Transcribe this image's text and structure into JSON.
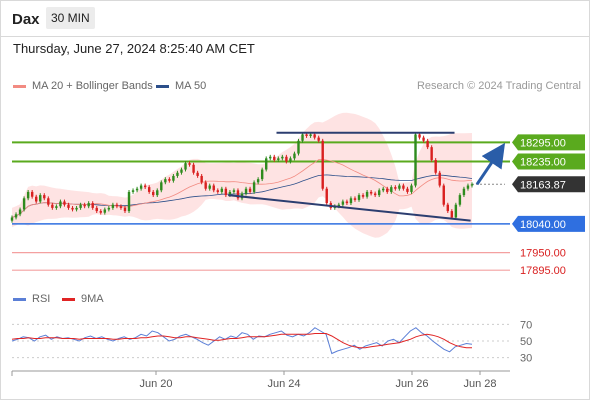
{
  "header": {
    "symbol": "Dax",
    "timeframe": "30 MIN"
  },
  "datetime": "Thursday, June 27, 2024 8:25:40 AM CET",
  "legend": {
    "ma20": {
      "label": "MA 20 + Bollinger Bands",
      "color": "#f28b82"
    },
    "ma50": {
      "label": "MA 50",
      "color": "#2c4f8a"
    }
  },
  "research": "Research © 2024 Trading Central",
  "rsi_legend": {
    "rsi": {
      "label": "RSI",
      "color": "#5b7fd6"
    },
    "ma9": {
      "label": "9MA",
      "color": "#e02424"
    }
  },
  "colors": {
    "up": "#2e8b1e",
    "down": "#d92020",
    "green_level": "#5aaa1e",
    "blue_level": "#2f6fe0",
    "red_level": "#f4a0a0",
    "current": "#333333",
    "band": "#fdd9d9",
    "arrow": "#2a5da8"
  },
  "chart_data": {
    "type": "candlestick",
    "ylim": [
      17880,
      18340
    ],
    "x_ticks": [
      "Jun 20",
      "Jun 24",
      "Jun 26",
      "Jun 28"
    ],
    "levels": [
      {
        "value": 18295.0,
        "label": "18295.00",
        "kind": "resistance",
        "color": "#5aaa1e"
      },
      {
        "value": 18235.0,
        "label": "18235.00",
        "kind": "resistance",
        "color": "#5aaa1e"
      },
      {
        "value": 18163.87,
        "label": "18163.87",
        "kind": "current",
        "color": "#333333"
      },
      {
        "value": 18040.0,
        "label": "18040.00",
        "kind": "pivot",
        "color": "#2f6fe0"
      },
      {
        "value": 17950.0,
        "label": "17950.00",
        "kind": "support",
        "color": "#f4a0a0"
      },
      {
        "value": 17895.0,
        "label": "17895.00",
        "kind": "support",
        "color": "#f4a0a0"
      }
    ],
    "close_path": [
      18060,
      18070,
      18085,
      18120,
      18140,
      18125,
      18110,
      18130,
      18120,
      18100,
      18090,
      18095,
      18110,
      18100,
      18090,
      18085,
      18090,
      18100,
      18095,
      18105,
      18090,
      18080,
      18075,
      18085,
      18090,
      18100,
      18095,
      18090,
      18080,
      18140,
      18145,
      18150,
      18160,
      18155,
      18140,
      18130,
      18145,
      18170,
      18180,
      18175,
      18190,
      18200,
      18210,
      18230,
      18225,
      18200,
      18190,
      18170,
      18150,
      18160,
      18145,
      18140,
      18150,
      18130,
      18140,
      18145,
      18120,
      18135,
      18150,
      18140,
      18170,
      18180,
      18210,
      18245,
      18250,
      18240,
      18245,
      18250,
      18235,
      18245,
      18260,
      18300,
      18320,
      18315,
      18320,
      18310,
      18300,
      18150,
      18105,
      18090,
      18095,
      18100,
      18110,
      18105,
      18120,
      18115,
      18130,
      18125,
      18140,
      18135,
      18130,
      18145,
      18150,
      18140,
      18155,
      18150,
      18160,
      18150,
      18140,
      18160,
      18320,
      18310,
      18300,
      18280,
      18240,
      18200,
      18160,
      18100,
      18080,
      18060,
      18100,
      18130,
      18150,
      18160,
      18163.87
    ],
    "trendlines": [
      {
        "from": [
          0.575,
          18325
        ],
        "to": [
          0.962,
          18325
        ]
      },
      {
        "from": [
          0.47,
          18130
        ],
        "to": [
          0.997,
          18050
        ]
      }
    ],
    "projection": {
      "from": 18163.87,
      "to": 18295.0
    },
    "rsi": {
      "ylim": [
        20,
        80
      ],
      "ticks": [
        70,
        50,
        30
      ],
      "rsi_values": [
        50,
        52,
        55,
        54,
        50,
        55,
        57,
        52,
        55,
        53,
        54,
        52,
        50,
        54,
        56,
        53,
        55,
        52,
        50,
        53,
        55,
        52,
        54,
        58,
        56,
        62,
        60,
        55,
        50,
        52,
        56,
        58,
        55,
        52,
        48,
        45,
        50,
        55,
        52,
        56,
        54,
        60,
        58,
        52,
        56,
        55,
        58,
        60,
        62,
        57,
        55,
        58,
        56,
        60,
        66,
        62,
        58,
        35,
        38,
        40,
        42,
        45,
        40,
        44,
        46,
        48,
        44,
        50,
        52,
        48,
        55,
        62,
        66,
        60,
        56,
        50,
        45,
        40,
        37,
        43,
        45,
        47,
        46
      ],
      "ma9_values": [
        52,
        53,
        53,
        54,
        53,
        53,
        54,
        54,
        54,
        53,
        53,
        53,
        52,
        53,
        53,
        53,
        53,
        53,
        52,
        52,
        53,
        53,
        53,
        54,
        54,
        55,
        56,
        56,
        55,
        54,
        54,
        55,
        55,
        54,
        53,
        52,
        51,
        51,
        52,
        53,
        53,
        54,
        55,
        55,
        55,
        55,
        56,
        57,
        58,
        58,
        58,
        58,
        58,
        58,
        59,
        59,
        59,
        56,
        52,
        48,
        45,
        43,
        42,
        42,
        43,
        44,
        45,
        46,
        47,
        48,
        50,
        52,
        55,
        57,
        58,
        57,
        55,
        52,
        48,
        45,
        43,
        42,
        42
      ]
    }
  }
}
